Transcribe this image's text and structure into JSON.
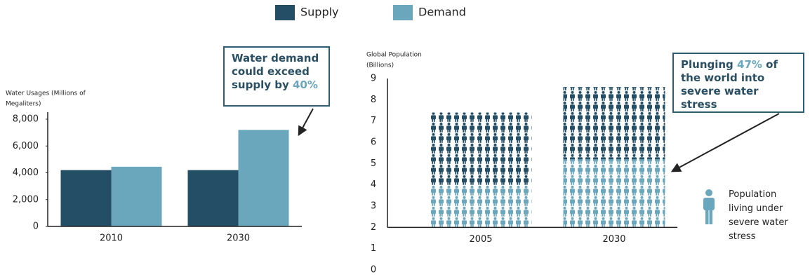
{
  "chart_data": [
    {
      "type": "bar",
      "y_label": [
        "Water Usages  (Millions of",
        "Megaliters)"
      ],
      "categories": [
        "2010",
        "2030"
      ],
      "series": [
        {
          "name": "Supply",
          "color": "#234e66",
          "values": [
            4200,
            4200
          ]
        },
        {
          "name": "Demand",
          "color": "#6aa7bd",
          "values": [
            4450,
            7200
          ]
        }
      ],
      "ylim": [
        0,
        8000
      ],
      "yticks": [
        0,
        {
          "value": 2000,
          "label": "2,000"
        },
        {
          "value": 4000,
          "label": "4,000"
        },
        {
          "value": 6000,
          "label": "6,000"
        },
        {
          "value": 8000,
          "label": "8,000"
        }
      ],
      "annotation": {
        "text": "Water demand could exceed supply by",
        "highlight": "40%"
      }
    },
    {
      "type": "pictogram",
      "y_label": [
        "Global Population",
        "(Billions)"
      ],
      "categories": [
        "2005",
        "2030"
      ],
      "baseline": 2,
      "series": [
        {
          "name": "Population living under severe water stress",
          "color": "#6aa7bd",
          "values": [
            2.0,
            3.2
          ]
        },
        {
          "color": "#234e66",
          "values": [
            3.4,
            3.4
          ]
        }
      ],
      "ylim": [
        0,
        9
      ],
      "yticks": [
        0,
        1,
        2,
        3,
        4,
        5,
        6,
        7,
        8,
        9
      ],
      "annotation": {
        "prefix": "Plunging",
        "highlight": "47%",
        "suffix": "of the world into severe water stress"
      }
    }
  ]
}
